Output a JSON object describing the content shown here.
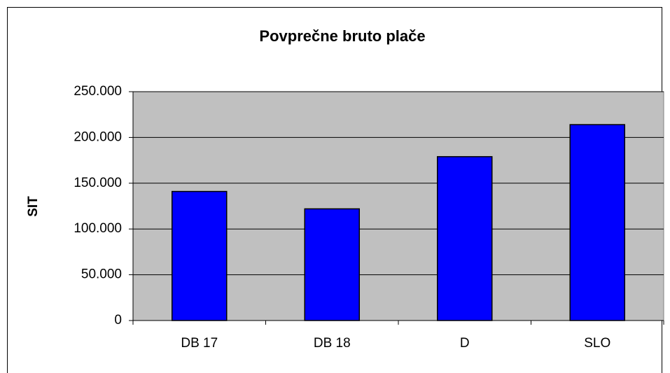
{
  "chart_data": {
    "type": "bar",
    "title": "Povprečne bruto plače",
    "y_label": "SIT",
    "categories": [
      "DB 17",
      "DB 18",
      "D",
      "SLO"
    ],
    "values": [
      141000,
      122000,
      179000,
      214000
    ],
    "color": "#0000ff",
    "ylim": [
      0,
      250000
    ],
    "yticks": [
      0,
      {
        "value": 50000,
        "label": "50.000"
      },
      {
        "value": 100000,
        "label": "100.000"
      },
      {
        "value": 150000,
        "label": "150.000"
      },
      {
        "value": 200000,
        "label": "200.000"
      },
      {
        "value": 250000,
        "label": "250.000"
      }
    ],
    "grid": true
  }
}
